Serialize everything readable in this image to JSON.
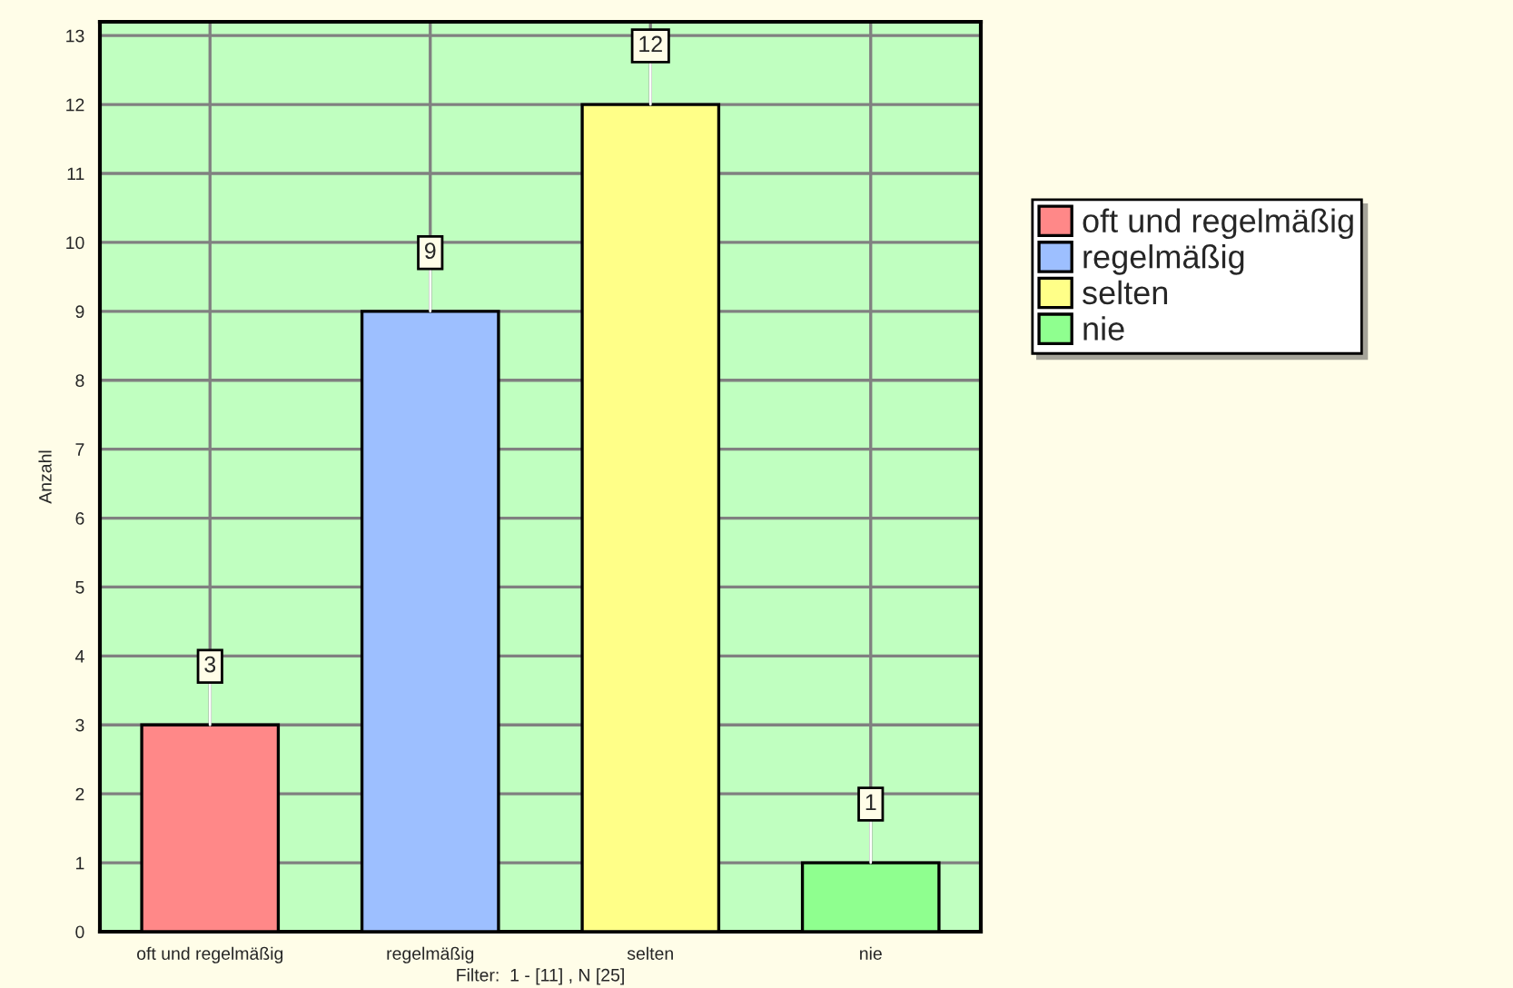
{
  "chart_data": {
    "type": "bar",
    "ylabel": "Anzahl",
    "xlabel": "Filter:  1 - [11] , N [25]",
    "categories": [
      "oft und regelmäßig",
      "regelmäßig",
      "selten",
      "nie"
    ],
    "series": [
      {
        "name": "oft und regelmäßig",
        "color": "#ff8888",
        "values": [
          3,
          null,
          null,
          null
        ]
      },
      {
        "name": "regelmäßig",
        "color": "#9dbfff",
        "values": [
          null,
          9,
          null,
          null
        ]
      },
      {
        "name": "selten",
        "color": "#ffff88",
        "values": [
          null,
          null,
          12,
          null
        ]
      },
      {
        "name": "nie",
        "color": "#8fff8f",
        "values": [
          null,
          null,
          null,
          1
        ]
      }
    ],
    "ylim": [
      0,
      13.2
    ],
    "yticks": [
      0,
      1,
      2,
      3,
      4,
      5,
      6,
      7,
      8,
      9,
      10,
      11,
      12,
      13
    ],
    "grid": true,
    "legend": "right",
    "data_labels": true
  }
}
